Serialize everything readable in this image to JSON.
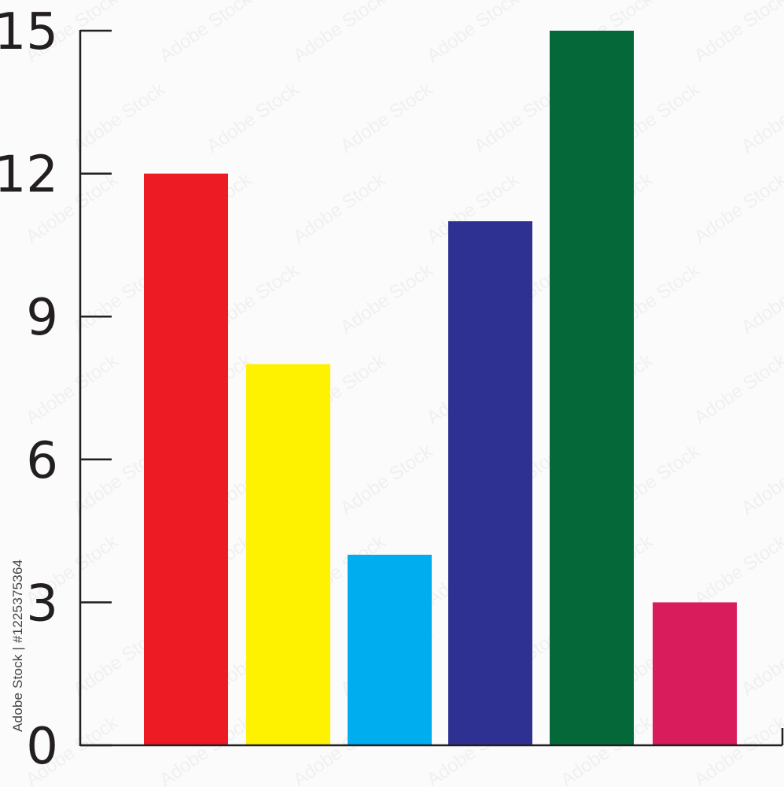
{
  "chart_data": {
    "type": "bar",
    "categories": [
      "",
      "",
      "",
      "",
      "",
      ""
    ],
    "values": [
      12,
      8,
      4,
      11,
      15,
      3
    ],
    "colors": [
      "#ed1c24",
      "#fff200",
      "#00aeef",
      "#2e3192",
      "#056839",
      "#d91c5c"
    ],
    "yticks": [
      0,
      3,
      6,
      9,
      12,
      15
    ],
    "ylim": [
      0,
      15
    ],
    "title": "",
    "xlabel": "",
    "ylabel": "",
    "grid": false,
    "legend": "none"
  },
  "watermark": {
    "stock_id": "Adobe Stock | #1225375364",
    "repeated_text": "Adobe Stock"
  }
}
